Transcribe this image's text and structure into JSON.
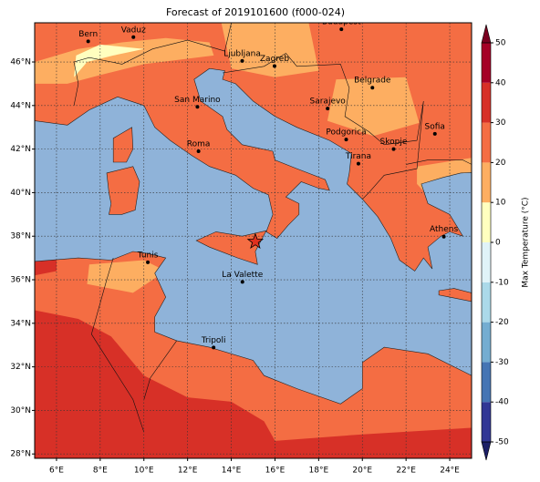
{
  "chart_data": {
    "type": "map",
    "title": "Forecast of 2019101600 (f000-024)",
    "xlim": [
      5,
      25
    ],
    "ylim": [
      27.8,
      47.8
    ],
    "xticks": [
      {
        "value": 6,
        "label": "6°E"
      },
      {
        "value": 8,
        "label": "8°E"
      },
      {
        "value": 10,
        "label": "10°E"
      },
      {
        "value": 12,
        "label": "12°E"
      },
      {
        "value": 14,
        "label": "14°E"
      },
      {
        "value": 16,
        "label": "16°E"
      },
      {
        "value": 18,
        "label": "18°E"
      },
      {
        "value": 20,
        "label": "20°E"
      },
      {
        "value": 22,
        "label": "22°E"
      },
      {
        "value": 24,
        "label": "24°E"
      }
    ],
    "yticks": [
      {
        "value": 28,
        "label": "28°N"
      },
      {
        "value": 30,
        "label": "30°N"
      },
      {
        "value": 32,
        "label": "32°N"
      },
      {
        "value": 34,
        "label": "34°N"
      },
      {
        "value": 36,
        "label": "36°N"
      },
      {
        "value": 38,
        "label": "38°N"
      },
      {
        "value": 40,
        "label": "40°N"
      },
      {
        "value": 42,
        "label": "42°N"
      },
      {
        "value": 44,
        "label": "44°N"
      },
      {
        "value": 46,
        "label": "46°N"
      }
    ],
    "grid": true,
    "cities": {
      "names": [
        "Bern",
        "Vaduz",
        "Budapest",
        "Ljubljana",
        "Zagreb",
        "Belgrade",
        "San Marino",
        "Sarajevo",
        "Sofia",
        "Podgorica",
        "Skopje",
        "Roma",
        "Tirana",
        "Athens",
        "Tunis",
        "La Valette",
        "Tripoli"
      ],
      "x": [
        7.45,
        9.52,
        19.04,
        14.5,
        15.98,
        20.46,
        12.45,
        18.41,
        23.32,
        19.26,
        21.43,
        12.5,
        19.82,
        23.73,
        10.18,
        14.51,
        13.19
      ],
      "y": [
        46.95,
        47.14,
        47.5,
        46.05,
        45.81,
        44.82,
        43.94,
        43.86,
        42.7,
        42.44,
        42.0,
        41.9,
        41.33,
        37.98,
        36.8,
        35.9,
        32.89
      ]
    },
    "highlight": {
      "x": 15.1,
      "y": 37.75
    },
    "colorbar": {
      "label": "Max Temperature (°C)",
      "lim": [
        -50,
        50
      ],
      "ticks": [
        -50,
        -40,
        -30,
        -20,
        -10,
        0,
        10,
        20,
        30,
        40,
        50
      ],
      "colors": [
        "#313695",
        "#4575b4",
        "#74add1",
        "#abd9e9",
        "#e0f3f8",
        "#ffffbf",
        "#fdae61",
        "#f46d43",
        "#d73027",
        "#a50026"
      ],
      "extend_colors": [
        "#1c1f66",
        "#7a0020"
      ]
    }
  }
}
